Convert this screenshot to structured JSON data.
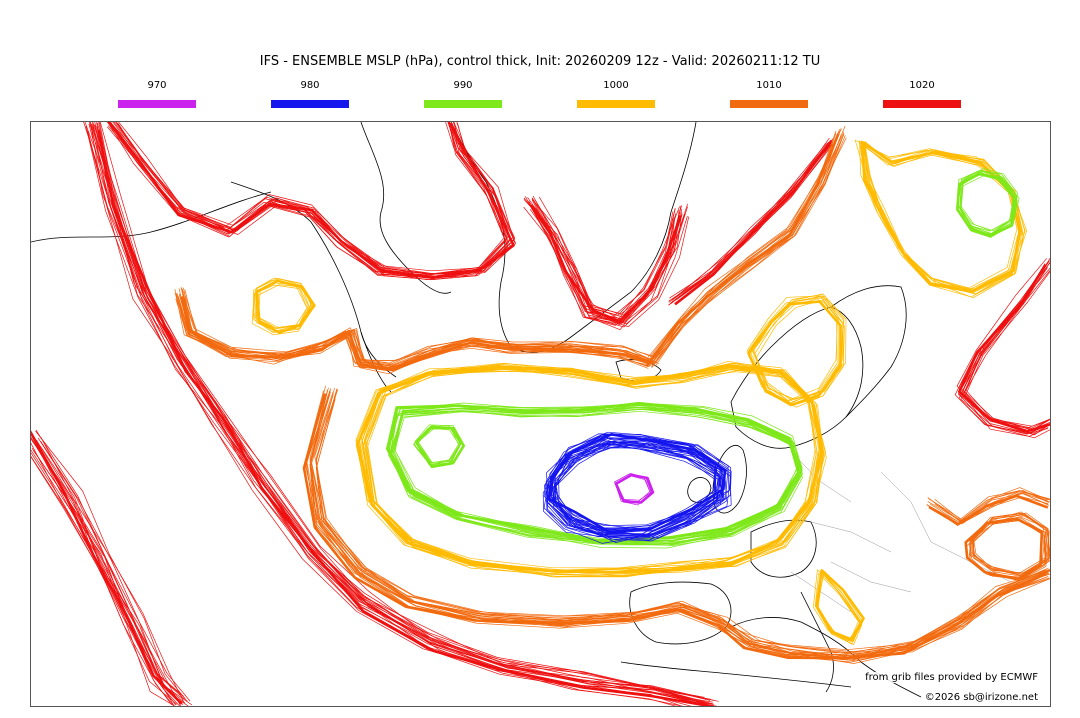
{
  "header": {
    "title": "IFS - ENSEMBLE MSLP (hPa), control thick, Init: 20260209 12z - Valid: 20260211:12 TU"
  },
  "legend": {
    "items": [
      {
        "label": "970",
        "color": "#cc22ee"
      },
      {
        "label": "980",
        "color": "#1515ee"
      },
      {
        "label": "990",
        "color": "#7ee81a"
      },
      {
        "label": "1000",
        "color": "#ffbb00"
      },
      {
        "label": "1010",
        "color": "#f26a0f"
      },
      {
        "label": "1020",
        "color": "#ee1111"
      }
    ]
  },
  "map": {
    "region": "North Atlantic and Europe",
    "low_center_hpa_min": 970,
    "isobar_levels_hpa": [
      970,
      980,
      990,
      1000,
      1010,
      1020
    ],
    "coastline_color": "#000000",
    "border_color": "#999999"
  },
  "footer": {
    "source": "from grib files provided by ECMWF",
    "copyright": "©2026 sb@irizone.net"
  }
}
